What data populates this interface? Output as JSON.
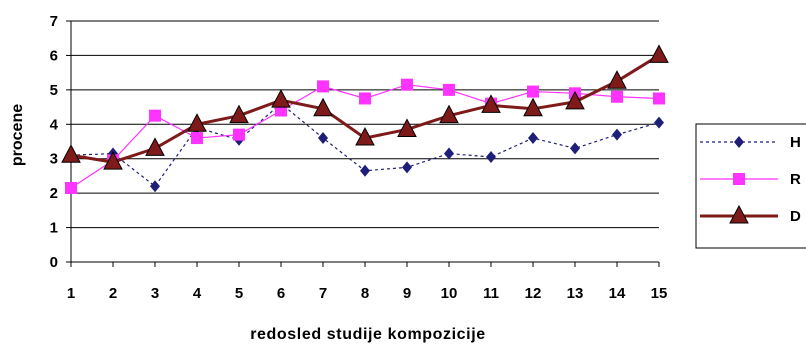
{
  "chart_data": {
    "type": "line",
    "x": [
      1,
      2,
      3,
      4,
      5,
      6,
      7,
      8,
      9,
      10,
      11,
      12,
      13,
      14,
      15
    ],
    "xlabel": "redosled studije kompozicije",
    "ylabel": "procene",
    "ylim": [
      0,
      7
    ],
    "yticks": [
      0,
      1,
      2,
      3,
      4,
      5,
      6,
      7
    ],
    "grid": "horizontal",
    "legend_position": "right",
    "series": [
      {
        "name": "H",
        "color": "#1f1f7a",
        "line_style": "dotted",
        "marker": "diamond",
        "values": [
          3.1,
          3.15,
          2.2,
          3.9,
          3.55,
          4.6,
          3.6,
          2.65,
          2.75,
          3.15,
          3.05,
          3.6,
          3.3,
          3.7,
          4.05
        ]
      },
      {
        "name": "R",
        "color": "#ff33ff",
        "line_style": "solid",
        "marker": "square",
        "values": [
          2.15,
          2.95,
          4.25,
          3.6,
          3.7,
          4.4,
          5.1,
          4.75,
          5.15,
          5.0,
          4.6,
          4.95,
          4.9,
          4.8,
          4.75
        ]
      },
      {
        "name": "D",
        "color": "#7f1a1a",
        "line_style": "solid-thick",
        "marker": "triangle",
        "values": [
          3.1,
          2.9,
          3.3,
          4.0,
          4.25,
          4.7,
          4.45,
          3.6,
          3.85,
          4.25,
          4.55,
          4.45,
          4.65,
          5.25,
          6.0
        ]
      }
    ]
  }
}
